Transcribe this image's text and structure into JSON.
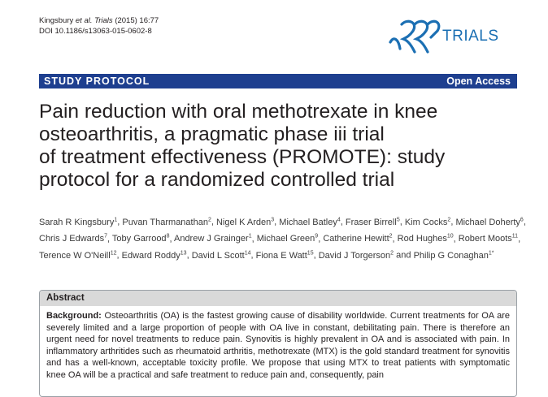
{
  "citation": {
    "authors": "Kingsbury",
    "etal": "et al.",
    "journal": "Trials",
    "year_vol": "(2015) 16:77",
    "doi": "DOI 10.1186/s13063-015-0602-8"
  },
  "logo": {
    "text": "TRIALS",
    "color": "#1b6fb3"
  },
  "banner": {
    "section": "STUDY PROTOCOL",
    "access": "Open Access",
    "color": "#1e3f8f"
  },
  "title_lines": [
    "Pain reduction with oral methotrexate in knee",
    "osteoarthritis, a pragmatic phase iii trial",
    "of treatment effectiveness (PROMOTE): study",
    "protocol for a randomized controlled trial"
  ],
  "authors": [
    {
      "name": "Sarah R Kingsbury",
      "aff": "1"
    },
    {
      "name": "Puvan Tharmanathan",
      "aff": "2"
    },
    {
      "name": "Nigel K Arden",
      "aff": "3"
    },
    {
      "name": "Michael Batley",
      "aff": "4"
    },
    {
      "name": "Fraser Birrell",
      "aff": "5"
    },
    {
      "name": "Kim Cocks",
      "aff": "2"
    },
    {
      "name": "Michael Doherty",
      "aff": "6"
    },
    {
      "name": "Chris J Edwards",
      "aff": "7"
    },
    {
      "name": "Toby Garrood",
      "aff": "8"
    },
    {
      "name": "Andrew J Grainger",
      "aff": "1"
    },
    {
      "name": "Michael Green",
      "aff": "9"
    },
    {
      "name": "Catherine Hewitt",
      "aff": "2"
    },
    {
      "name": "Rod Hughes",
      "aff": "10"
    },
    {
      "name": "Robert Moots",
      "aff": "11"
    },
    {
      "name": "Terence W O'Neill",
      "aff": "12"
    },
    {
      "name": "Edward Roddy",
      "aff": "13"
    },
    {
      "name": "David L Scott",
      "aff": "14"
    },
    {
      "name": "Fiona E Watt",
      "aff": "15"
    },
    {
      "name": "David J Torgerson",
      "aff": "2"
    },
    {
      "name": "Philip G Conaghan",
      "aff": "1*"
    }
  ],
  "authors_final_conj": "and",
  "abstract": {
    "heading": "Abstract",
    "background_label": "Background:",
    "background_text": "Osteoarthritis (OA) is the fastest growing cause of disability worldwide. Current treatments for OA are severely limited and a large proportion of people with OA live in constant, debilitating pain. There is therefore an urgent need for novel treatments to reduce pain. Synovitis is highly prevalent in OA and is associated with pain. In inflammatory arthritides such as rheumatoid arthritis, methotrexate (MTX) is the gold standard treatment for synovitis and has a well-known, acceptable toxicity profile. We propose that using MTX to treat patients with symptomatic knee OA will be a practical and safe treatment to reduce pain and, consequently, pain"
  }
}
